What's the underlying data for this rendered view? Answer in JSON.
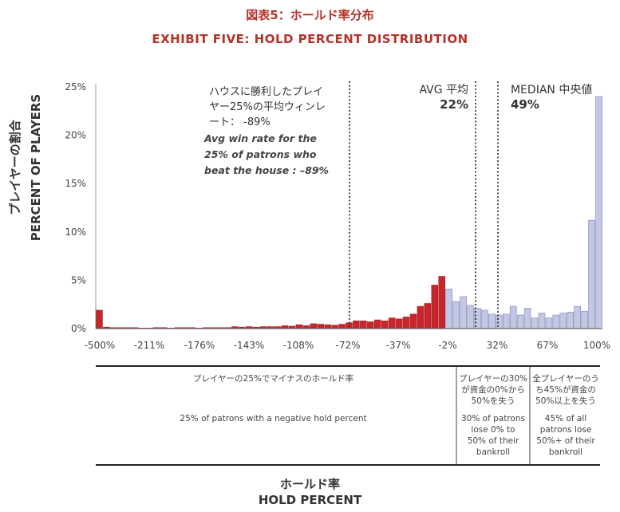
{
  "title_ja": "図表5：ホールド率分布",
  "title_en": "EXHIBIT FIVE: HOLD PERCENT DISTRIBUTION",
  "colors": {
    "title": "#b5322a",
    "negative_bar": "#c8262b",
    "positive_bar": "#c3c7e3",
    "bar_edge": "#7f86b5"
  },
  "annotations": {
    "house_winners_ja_line1": "ハウスに勝利したプレイ",
    "house_winners_ja_line2": "ヤー25%の平均ウィンレ",
    "house_winners_ja_line3": "ート：  -89%",
    "house_winners_en_line1": "Avg win rate for the",
    "house_winners_en_line2": "25% of patrons who",
    "house_winners_en_line3": "beat the house : –89%",
    "avg_label": "AVG 平均",
    "avg_value": "22%",
    "median_label": "MEDIAN 中央値",
    "median_value": "49%"
  },
  "segments": {
    "negative_ja": "プレイヤーの25%でマイナスのホールド率",
    "negative_en": "25% of patrons with a negative hold percent",
    "mid_ja_1": "プレイヤーの30%",
    "mid_ja_2": "が資金の0%から",
    "mid_ja_3": "50%を失う",
    "mid_en_1": "30% of patrons",
    "mid_en_2": "lose 0% to",
    "mid_en_3": "50% of their",
    "mid_en_4": "bankroll",
    "right_ja_1": "全プレイヤーのう",
    "right_ja_2": "ち45%が資金の",
    "right_ja_3": "50%以上を失う",
    "right_en_1": "45% of all",
    "right_en_2": "patrons lose",
    "right_en_3": "50%+ of their",
    "right_en_4": "bankroll"
  },
  "xlabel_ja": "ホールド率",
  "xlabel_en": "HOLD PERCENT",
  "ylabel_ja": "プレイヤーの割合",
  "ylabel_en": "PERCENT OF PLAYERS",
  "chart_data": {
    "type": "bar",
    "xlabel": "HOLD PERCENT",
    "ylabel": "PERCENT OF PLAYERS",
    "ylim": [
      0,
      25
    ],
    "y_ticks": [
      "0%",
      "5%",
      "10%",
      "15%",
      "20%",
      "25%"
    ],
    "x_tick_labels": [
      "-500%",
      "-211%",
      "-176%",
      "-143%",
      "-108%",
      "-72%",
      "-37%",
      "-2%",
      "32%",
      "67%",
      "100%"
    ],
    "reference_lines": [
      {
        "label": "-89%",
        "value": -89
      },
      {
        "label": "AVG 22%",
        "value": 22
      },
      {
        "label": "MEDIAN 49%",
        "value": 49
      }
    ],
    "grid": false,
    "series": [
      {
        "name": "",
        "values": [
          1.9,
          0.15,
          0.1,
          0.1,
          0.1,
          0.1,
          0.05,
          0.05,
          0.1,
          0.1,
          0.05,
          0.1,
          0.1,
          0.1,
          0.05,
          0.1,
          0.1,
          0.1,
          0.1,
          0.2,
          0.15,
          0.2,
          0.15,
          0.2,
          0.2,
          0.2,
          0.3,
          0.25,
          0.4,
          0.3,
          0.5,
          0.45,
          0.4,
          0.35,
          0.45,
          0.6,
          0.8,
          0.8,
          0.7,
          0.9,
          0.8,
          1.1,
          1.0,
          1.2,
          1.5,
          2.3,
          2.6,
          4.5,
          5.4,
          4.1,
          2.8,
          3.3,
          2.4,
          2.1,
          1.9,
          1.5,
          1.4,
          1.5,
          2.3,
          1.4,
          2.1,
          1.1,
          1.6,
          1.1,
          1.4,
          1.6,
          1.7,
          2.3,
          1.8,
          11.2,
          24.0
        ]
      }
    ]
  }
}
